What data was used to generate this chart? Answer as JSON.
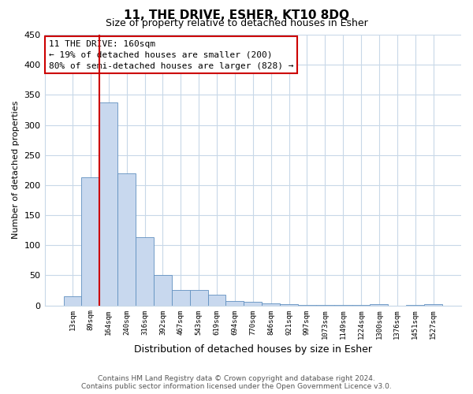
{
  "title": "11, THE DRIVE, ESHER, KT10 8DQ",
  "subtitle": "Size of property relative to detached houses in Esher",
  "xlabel": "Distribution of detached houses by size in Esher",
  "ylabel": "Number of detached properties",
  "bar_labels": [
    "13sqm",
    "89sqm",
    "164sqm",
    "240sqm",
    "316sqm",
    "392sqm",
    "467sqm",
    "543sqm",
    "619sqm",
    "694sqm",
    "770sqm",
    "846sqm",
    "921sqm",
    "997sqm",
    "1073sqm",
    "1149sqm",
    "1224sqm",
    "1300sqm",
    "1376sqm",
    "1451sqm",
    "1527sqm"
  ],
  "bar_values": [
    15,
    213,
    338,
    220,
    113,
    50,
    26,
    25,
    18,
    7,
    6,
    4,
    2,
    1,
    1,
    1,
    1,
    2,
    0,
    1,
    2
  ],
  "bar_color": "#c8d8ee",
  "bar_edge_color": "#6090c0",
  "vline_color": "#cc0000",
  "annotation_box_text": "11 THE DRIVE: 160sqm\n← 19% of detached houses are smaller (200)\n80% of semi-detached houses are larger (828) →",
  "ylim": [
    0,
    450
  ],
  "yticks": [
    0,
    50,
    100,
    150,
    200,
    250,
    300,
    350,
    400,
    450
  ],
  "footer_text": "Contains HM Land Registry data © Crown copyright and database right 2024.\nContains public sector information licensed under the Open Government Licence v3.0.",
  "bg_color": "#ffffff",
  "grid_color": "#c8d8e8"
}
